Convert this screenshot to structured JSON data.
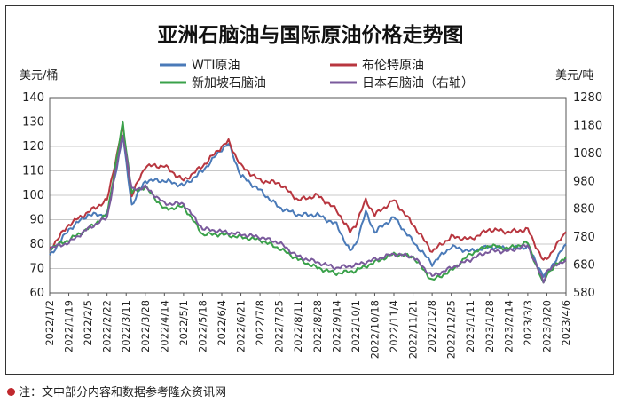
{
  "title": "亚洲石脑油与国际原油价格走势图",
  "footnote": "注：文中部分内容和数据参考隆众资讯网",
  "chart_data": {
    "type": "line",
    "title": "亚洲石脑油与国际原油价格走势图",
    "left_axis": {
      "unit_label": "美元/桶",
      "range": [
        60,
        140
      ],
      "ticks": [
        60,
        70,
        80,
        90,
        100,
        110,
        120,
        130,
        140
      ]
    },
    "right_axis": {
      "unit_label": "美元/吨",
      "range": [
        580,
        1280
      ],
      "ticks": [
        580,
        680,
        780,
        880,
        980,
        1080,
        1180,
        1280
      ]
    },
    "x_range": [
      "2022/1/2",
      "2023/4/6"
    ],
    "x_ticks": [
      "2022/1/2",
      "2022/1/19",
      "2022/2/5",
      "2022/2/22",
      "2022/3/11",
      "2022/3/28",
      "2022/4/14",
      "2022/5/1",
      "2022/5/18",
      "2022/6/4",
      "2022/6/21",
      "2022/7/8",
      "2022/7/25",
      "2022/8/11",
      "2022/8/28",
      "2022/9/14",
      "2022/10/1",
      "2022/10/18",
      "2022/11/4",
      "2022/11/21",
      "2022/12/8",
      "2022/12/25",
      "2023/1/11",
      "2023/1/28",
      "2023/2/14",
      "2023/3/3",
      "2023/3/20",
      "2023/4/6"
    ],
    "legend_placement": "top",
    "grid": {
      "horizontal": true,
      "vertical": false
    },
    "series": [
      {
        "name": "WTI原油",
        "axis": "left",
        "color": "#4a7ab8",
        "points": [
          [
            "2022/1/2",
            75
          ],
          [
            "2022/1/19",
            86
          ],
          [
            "2022/2/5",
            92
          ],
          [
            "2022/2/22",
            92
          ],
          [
            "2022/3/8",
            124
          ],
          [
            "2022/3/16",
            96
          ],
          [
            "2022/3/28",
            106
          ],
          [
            "2022/4/14",
            106
          ],
          [
            "2022/5/1",
            104
          ],
          [
            "2022/5/18",
            110
          ],
          [
            "2022/6/4",
            119
          ],
          [
            "2022/6/10",
            121
          ],
          [
            "2022/6/21",
            108
          ],
          [
            "2022/7/8",
            102
          ],
          [
            "2022/7/25",
            95
          ],
          [
            "2022/8/11",
            92
          ],
          [
            "2022/8/28",
            92
          ],
          [
            "2022/9/14",
            88
          ],
          [
            "2022/9/26",
            77
          ],
          [
            "2022/10/1",
            80
          ],
          [
            "2022/10/10",
            93
          ],
          [
            "2022/10/18",
            85
          ],
          [
            "2022/11/4",
            91
          ],
          [
            "2022/11/21",
            81
          ],
          [
            "2022/12/8",
            72
          ],
          [
            "2022/12/25",
            79
          ],
          [
            "2023/1/11",
            77
          ],
          [
            "2023/1/28",
            79
          ],
          [
            "2023/2/14",
            78
          ],
          [
            "2023/3/3",
            79
          ],
          [
            "2023/3/17",
            67
          ],
          [
            "2023/3/20",
            68
          ],
          [
            "2023/4/6",
            80
          ]
        ]
      },
      {
        "name": "布伦特原油",
        "axis": "left",
        "color": "#b8363f",
        "points": [
          [
            "2022/1/2",
            78
          ],
          [
            "2022/1/19",
            88
          ],
          [
            "2022/2/5",
            93
          ],
          [
            "2022/2/22",
            98
          ],
          [
            "2022/3/8",
            128
          ],
          [
            "2022/3/16",
            100
          ],
          [
            "2022/3/28",
            112
          ],
          [
            "2022/4/14",
            112
          ],
          [
            "2022/5/1",
            106
          ],
          [
            "2022/5/18",
            112
          ],
          [
            "2022/6/4",
            120
          ],
          [
            "2022/6/10",
            122
          ],
          [
            "2022/6/21",
            112
          ],
          [
            "2022/7/8",
            106
          ],
          [
            "2022/7/25",
            105
          ],
          [
            "2022/8/11",
            98
          ],
          [
            "2022/8/28",
            100
          ],
          [
            "2022/9/14",
            94
          ],
          [
            "2022/9/26",
            85
          ],
          [
            "2022/10/1",
            88
          ],
          [
            "2022/10/10",
            98
          ],
          [
            "2022/10/18",
            92
          ],
          [
            "2022/11/4",
            98
          ],
          [
            "2022/11/21",
            88
          ],
          [
            "2022/12/8",
            77
          ],
          [
            "2022/12/25",
            83
          ],
          [
            "2023/1/11",
            82
          ],
          [
            "2023/1/28",
            86
          ],
          [
            "2023/2/14",
            85
          ],
          [
            "2023/3/3",
            86
          ],
          [
            "2023/3/17",
            73
          ],
          [
            "2023/3/20",
            74
          ],
          [
            "2023/4/6",
            85
          ]
        ]
      },
      {
        "name": "新加坡石脑油",
        "axis": "right",
        "color": "#3aa14a",
        "points": [
          [
            "2022/1/2",
            740
          ],
          [
            "2022/1/19",
            770
          ],
          [
            "2022/2/5",
            810
          ],
          [
            "2022/2/22",
            860
          ],
          [
            "2022/3/8",
            1190
          ],
          [
            "2022/3/16",
            940
          ],
          [
            "2022/3/28",
            960
          ],
          [
            "2022/4/14",
            880
          ],
          [
            "2022/5/1",
            890
          ],
          [
            "2022/5/18",
            790
          ],
          [
            "2022/6/4",
            790
          ],
          [
            "2022/6/21",
            780
          ],
          [
            "2022/7/8",
            770
          ],
          [
            "2022/7/25",
            740
          ],
          [
            "2022/8/11",
            700
          ],
          [
            "2022/8/28",
            670
          ],
          [
            "2022/9/14",
            650
          ],
          [
            "2022/10/1",
            660
          ],
          [
            "2022/10/18",
            690
          ],
          [
            "2022/11/4",
            720
          ],
          [
            "2022/11/21",
            710
          ],
          [
            "2022/12/8",
            625
          ],
          [
            "2022/12/25",
            660
          ],
          [
            "2023/1/11",
            720
          ],
          [
            "2023/1/28",
            750
          ],
          [
            "2023/2/14",
            740
          ],
          [
            "2023/3/3",
            760
          ],
          [
            "2023/3/17",
            610
          ],
          [
            "2023/3/20",
            650
          ],
          [
            "2023/4/6",
            710
          ]
        ]
      },
      {
        "name": "日本石脑油（右轴）",
        "axis": "right",
        "color": "#7a5a9c",
        "points": [
          [
            "2022/1/2",
            740
          ],
          [
            "2022/1/19",
            760
          ],
          [
            "2022/2/5",
            810
          ],
          [
            "2022/2/22",
            850
          ],
          [
            "2022/3/8",
            1150
          ],
          [
            "2022/3/16",
            950
          ],
          [
            "2022/3/28",
            960
          ],
          [
            "2022/4/14",
            900
          ],
          [
            "2022/5/1",
            900
          ],
          [
            "2022/5/18",
            810
          ],
          [
            "2022/6/4",
            800
          ],
          [
            "2022/6/21",
            790
          ],
          [
            "2022/7/8",
            780
          ],
          [
            "2022/7/25",
            760
          ],
          [
            "2022/8/11",
            710
          ],
          [
            "2022/8/28",
            690
          ],
          [
            "2022/9/14",
            670
          ],
          [
            "2022/10/1",
            680
          ],
          [
            "2022/10/18",
            700
          ],
          [
            "2022/11/4",
            720
          ],
          [
            "2022/11/21",
            710
          ],
          [
            "2022/12/8",
            640
          ],
          [
            "2022/12/25",
            670
          ],
          [
            "2023/1/11",
            700
          ],
          [
            "2023/1/28",
            730
          ],
          [
            "2023/2/14",
            730
          ],
          [
            "2023/3/3",
            750
          ],
          [
            "2023/3/17",
            620
          ],
          [
            "2023/3/20",
            660
          ],
          [
            "2023/4/6",
            700
          ]
        ]
      }
    ]
  }
}
